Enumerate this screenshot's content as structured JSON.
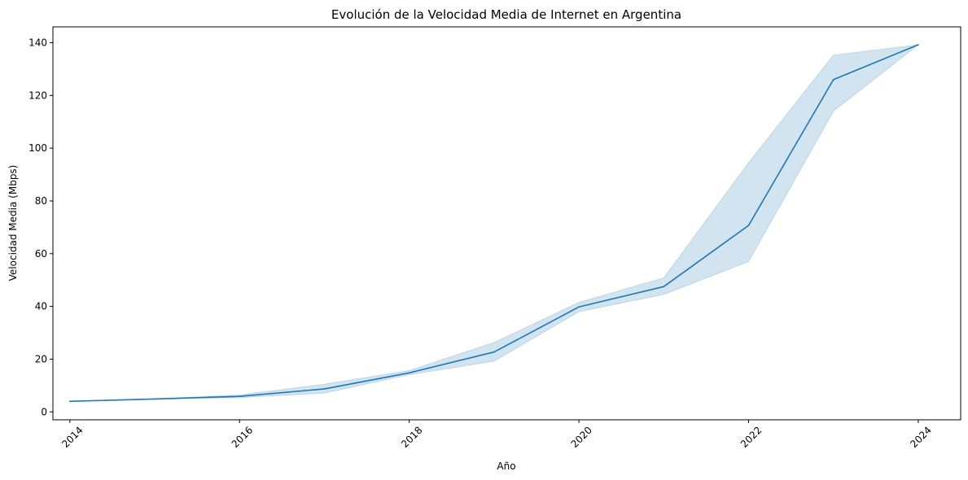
{
  "chart_data": {
    "type": "line",
    "title": "Evolución de la Velocidad Media de Internet en Argentina",
    "xlabel": "Año",
    "ylabel": "Velocidad Media (Mbps)",
    "xlim": [
      2013.8,
      2024.5
    ],
    "ylim": [
      -3,
      146
    ],
    "xticks": [
      2014,
      2016,
      2018,
      2020,
      2022,
      2024
    ],
    "xtick_labels": [
      "2014",
      "2016",
      "2018",
      "2020",
      "2022",
      "2024"
    ],
    "yticks": [
      0,
      20,
      40,
      60,
      80,
      100,
      120,
      140
    ],
    "ytick_labels": [
      "0",
      "20",
      "40",
      "60",
      "80",
      "100",
      "120",
      "140"
    ],
    "grid": false,
    "series": [
      {
        "x": [
          2014,
          2015,
          2016,
          2017,
          2018,
          2019,
          2020,
          2021,
          2022,
          2023,
          2024
        ],
        "values": [
          4.0,
          4.9,
          5.9,
          8.7,
          14.8,
          22.7,
          39.8,
          47.5,
          70.7,
          126.0,
          139.2
        ],
        "ci_lower": [
          4.0,
          4.8,
          5.4,
          7.1,
          14.1,
          19.2,
          38.0,
          44.5,
          57.0,
          114.0,
          139.2
        ],
        "ci_upper": [
          4.0,
          5.0,
          6.4,
          10.5,
          15.7,
          26.3,
          41.5,
          50.8,
          94.5,
          135.3,
          139.2
        ],
        "color": "#1f77b4"
      }
    ]
  }
}
